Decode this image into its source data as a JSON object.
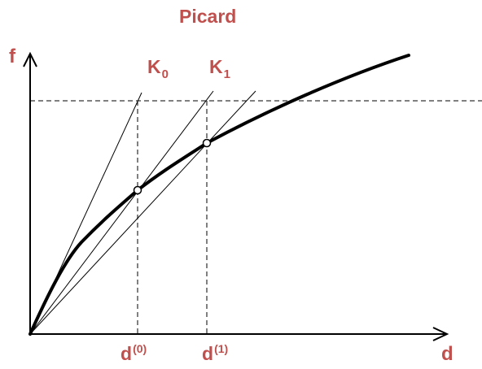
{
  "title": "Picard",
  "axes": {
    "vertical_label": "f",
    "horizontal_label": "d"
  },
  "tangent_labels": [
    {
      "base": "K",
      "sub": "0"
    },
    {
      "base": "K",
      "sub": "1"
    }
  ],
  "iterate_labels": [
    {
      "base": "d",
      "sup": "(0)"
    },
    {
      "base": "d",
      "sup": "(1)"
    }
  ],
  "colors": {
    "label": "#c0504d",
    "ink": "#000000",
    "background": "#ffffff"
  }
}
